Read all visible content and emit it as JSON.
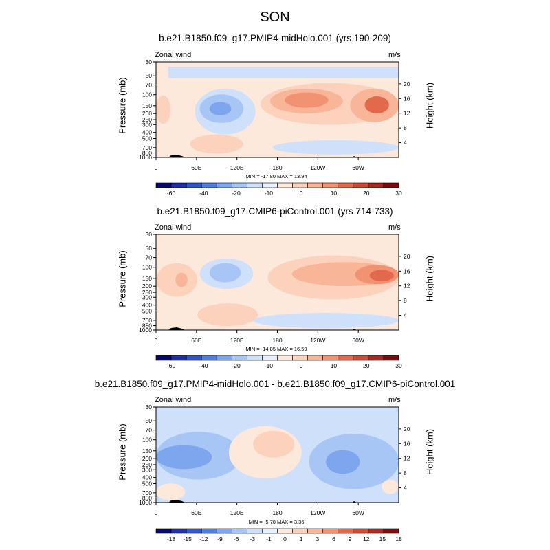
{
  "page_title": "SON",
  "chart_data": [
    {
      "type": "heatmap",
      "title": "b.e21.B1850.f09_g17.PMIP4-midHolo.001 (yrs 190-209)",
      "variable_label": "Zonal wind",
      "units_label": "m/s",
      "ylabel": "Pressure (mb)",
      "y2label": "Height (km)",
      "x_ticks": [
        "0",
        "60E",
        "120E",
        "180",
        "120W",
        "60W"
      ],
      "y_ticks": [
        "30",
        "50",
        "70",
        "100",
        "150",
        "200",
        "250",
        "300",
        "400",
        "500",
        "700",
        "850",
        "1000"
      ],
      "y2_ticks": [
        "20",
        "16",
        "12",
        "8",
        "4"
      ],
      "min_max_text": "MIN = -17.80  MAX =  13.94",
      "min": -17.8,
      "max": 13.94,
      "colorbar_levels": [
        "-60",
        "-40",
        "-20",
        "-10",
        "0",
        "10",
        "20",
        "30"
      ],
      "colorbar_colors": [
        "#08086b",
        "#1f2fa8",
        "#2f55c8",
        "#4f7ee0",
        "#7ea6ef",
        "#a8c6f5",
        "#cfe0fb",
        "#e8f0fd",
        "#fde9dc",
        "#fcd2bc",
        "#f8b597",
        "#f19272",
        "#e3694c",
        "#cc4a33",
        "#a82922",
        "#7a0b0e"
      ]
    },
    {
      "type": "heatmap",
      "title": "b.e21.B1850.f09_g17.CMIP6-piControl.001 (yrs 714-733)",
      "variable_label": "Zonal wind",
      "units_label": "m/s",
      "ylabel": "Pressure (mb)",
      "y2label": "Height (km)",
      "x_ticks": [
        "0",
        "60E",
        "120E",
        "180",
        "120W",
        "60W"
      ],
      "y_ticks": [
        "30",
        "50",
        "70",
        "100",
        "150",
        "200",
        "250",
        "300",
        "400",
        "500",
        "700",
        "850",
        "1000"
      ],
      "y2_ticks": [
        "20",
        "16",
        "12",
        "8",
        "4"
      ],
      "min_max_text": "MIN = -14.85  MAX =  16.59",
      "min": -14.85,
      "max": 16.59,
      "colorbar_levels": [
        "-60",
        "-40",
        "-20",
        "-10",
        "0",
        "10",
        "20",
        "30"
      ],
      "colorbar_colors": [
        "#08086b",
        "#1f2fa8",
        "#2f55c8",
        "#4f7ee0",
        "#7ea6ef",
        "#a8c6f5",
        "#cfe0fb",
        "#e8f0fd",
        "#fde9dc",
        "#fcd2bc",
        "#f8b597",
        "#f19272",
        "#e3694c",
        "#cc4a33",
        "#a82922",
        "#7a0b0e"
      ]
    },
    {
      "type": "heatmap",
      "title": "b.e21.B1850.f09_g17.PMIP4-midHolo.001 - b.e21.B1850.f09_g17.CMIP6-piControl.001",
      "variable_label": "Zonal wind",
      "units_label": "m/s",
      "ylabel": "Pressure (mb)",
      "y2label": "Height (km)",
      "x_ticks": [
        "0",
        "60E",
        "120E",
        "180",
        "120W",
        "60W"
      ],
      "y_ticks": [
        "30",
        "50",
        "70",
        "100",
        "150",
        "200",
        "250",
        "300",
        "400",
        "500",
        "700",
        "850",
        "1000"
      ],
      "y2_ticks": [
        "20",
        "16",
        "12",
        "8",
        "4"
      ],
      "min_max_text": "MIN =  -5.70  MAX =   3.36",
      "min": -5.7,
      "max": 3.36,
      "colorbar_levels": [
        "-18",
        "-15",
        "-12",
        "-9",
        "-6",
        "-3",
        "-1",
        "0",
        "1",
        "3",
        "6",
        "9",
        "12",
        "15",
        "18"
      ],
      "colorbar_colors": [
        "#08086b",
        "#1f2fa8",
        "#2f55c8",
        "#4f7ee0",
        "#7ea6ef",
        "#a8c6f5",
        "#cfe0fb",
        "#e8f0fd",
        "#fde9dc",
        "#fcd2bc",
        "#f8b597",
        "#f19272",
        "#e3694c",
        "#cc4a33",
        "#a82922",
        "#7a0b0e"
      ]
    }
  ]
}
